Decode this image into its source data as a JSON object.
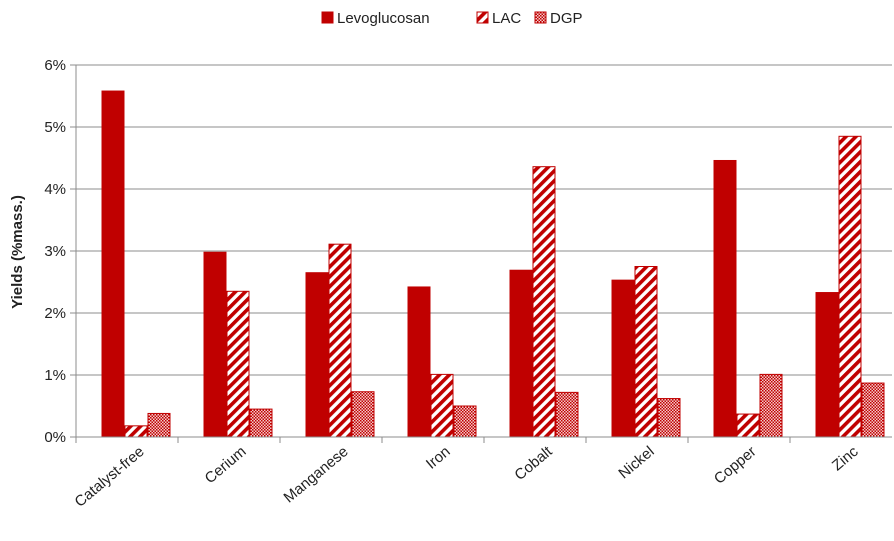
{
  "chart_data": {
    "type": "bar",
    "title": "",
    "xlabel": "",
    "ylabel": "Yields (%mass.)",
    "categories": [
      "Catalyst-free",
      "Cerium",
      "Manganese",
      "Iron",
      "Cobalt",
      "Nickel",
      "Copper",
      "Zinc"
    ],
    "ylim": [
      0,
      6
    ],
    "yticks": [
      "0%",
      "1%",
      "2%",
      "3%",
      "4%",
      "5%",
      "6%"
    ],
    "grid": true,
    "legend_position": "top-center",
    "series": [
      {
        "name": "Levoglucosan",
        "pattern": "solid",
        "color": "#c00000",
        "values": [
          5.58,
          2.98,
          2.65,
          2.42,
          2.69,
          2.53,
          4.46,
          2.33
        ]
      },
      {
        "name": "LAC",
        "pattern": "diagonal-stripes",
        "color": "#c00000",
        "values": [
          0.18,
          2.35,
          3.11,
          1.01,
          4.36,
          2.75,
          0.37,
          4.85
        ]
      },
      {
        "name": "DGP",
        "pattern": "crosshatch",
        "color": "#c00000",
        "values": [
          0.38,
          0.45,
          0.73,
          0.5,
          0.72,
          0.62,
          1.01,
          0.87
        ]
      }
    ]
  }
}
